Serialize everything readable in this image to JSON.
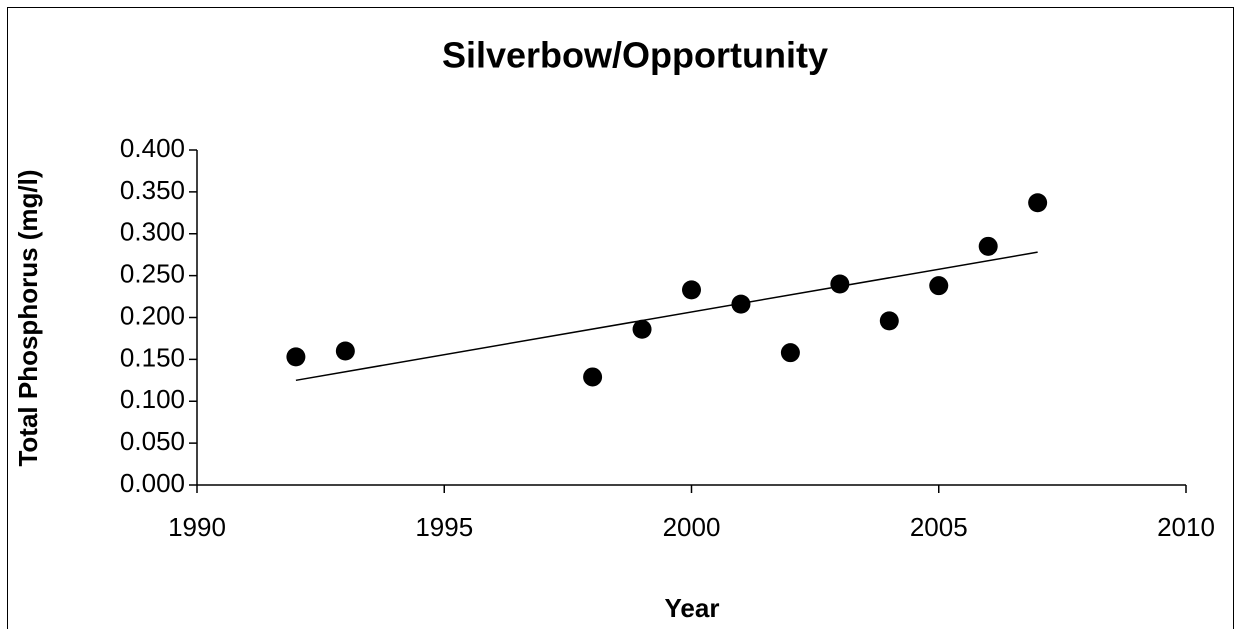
{
  "chart_data": {
    "type": "scatter",
    "title": "Silverbow/Opportunity",
    "x_label": "Year",
    "y_label": "Total Phosphorus (mg/l)",
    "x": [
      1992,
      1993,
      1998,
      1999,
      2000,
      2001,
      2002,
      2003,
      2004,
      2005,
      2006,
      2007
    ],
    "series": [
      {
        "color": "#000000",
        "values": [
          0.153,
          0.16,
          0.129,
          0.186,
          0.233,
          0.216,
          0.158,
          0.24,
          0.196,
          0.238,
          0.285,
          0.337
        ]
      }
    ],
    "trendline": {
      "color": "#000000",
      "x": [
        1992,
        2007
      ],
      "values": [
        0.125,
        0.278
      ]
    },
    "xlim": [
      1990,
      2010
    ],
    "xticks": [
      1990,
      1995,
      2000,
      2005,
      2010
    ],
    "ylim": [
      0,
      0.4
    ],
    "yticks": [
      {
        "value": 0,
        "label": "0.000"
      },
      {
        "value": 0.05,
        "label": "0.050"
      },
      {
        "value": 0.1,
        "label": "0.100"
      },
      {
        "value": 0.15,
        "label": "0.150"
      },
      {
        "value": 0.2,
        "label": "0.200"
      },
      {
        "value": 0.25,
        "label": "0.250"
      },
      {
        "value": 0.3,
        "label": "0.300"
      },
      {
        "value": 0.35,
        "label": "0.350"
      },
      {
        "value": 0.4,
        "label": "0.400"
      }
    ],
    "grid": false
  }
}
